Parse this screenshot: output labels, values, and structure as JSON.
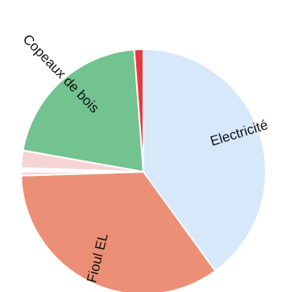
{
  "chart_data": {
    "type": "pie",
    "title": "",
    "start_angle_deg": 0,
    "direction": "clockwise",
    "slices": [
      {
        "label": "Electricité",
        "value": 40.0,
        "color": "#d6e8fa"
      },
      {
        "label": "Fioul EL",
        "value": 34.5,
        "color": "#eb9076"
      },
      {
        "label": "",
        "value": 0.5,
        "color": "#f6d4d6"
      },
      {
        "label": "",
        "value": 0.5,
        "color": "#ffffff"
      },
      {
        "label": "",
        "value": 2.3,
        "color": "#f6d4d6"
      },
      {
        "label": "Copeaux de bois",
        "value": 21.0,
        "color": "#72c390"
      },
      {
        "label": "",
        "value": 1.2,
        "color": "#e8383d"
      }
    ],
    "labels": [
      "Electricité",
      "Fioul EL",
      "Copeaux de bois"
    ],
    "grid": false,
    "legend": "none"
  }
}
